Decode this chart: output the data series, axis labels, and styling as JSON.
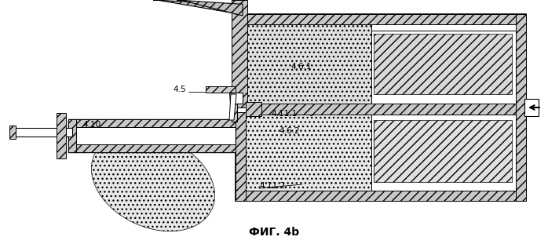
{
  "title": "ФИГ. 4b",
  "bg_color": "#ffffff",
  "title_fontsize": 10,
  "label_fontsize": 7.5
}
